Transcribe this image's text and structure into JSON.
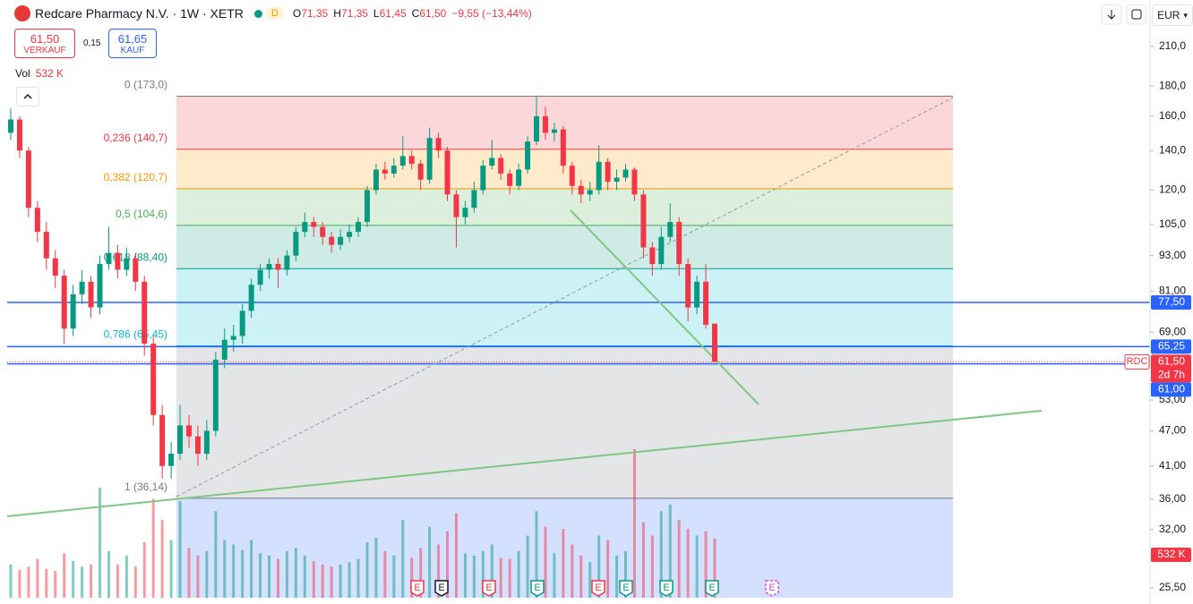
{
  "header": {
    "title": "Redcare Pharmacy N.V. · 1W · XETR",
    "badge": "D",
    "ohlc": [
      {
        "key": "O",
        "label": "71,35"
      },
      {
        "key": "H",
        "label": "71,35"
      },
      {
        "key": "L",
        "label": "61,45"
      },
      {
        "key": "C",
        "label": "61,50"
      }
    ],
    "change": "−9,55 (−13,44%)"
  },
  "trade": {
    "sell_price": "61,50",
    "sell": "VERKAUF",
    "spread": "0,15",
    "buy_price": "61,65",
    "buy": "KAUF"
  },
  "volume_legend": {
    "name": "Vol",
    "value": "532 K"
  },
  "currency": "EUR",
  "chart_data": {
    "type": "candlestick",
    "log_scale": true,
    "ylim": [
      23.95,
      251.6
    ],
    "yticks": [
      {
        "value": 25.5,
        "label": "25,50"
      },
      {
        "value": 32,
        "label": "32,00"
      },
      {
        "value": 36,
        "label": "36,00"
      },
      {
        "value": 41,
        "label": "41,00"
      },
      {
        "value": 47,
        "label": "47,00"
      },
      {
        "value": 53,
        "label": "53,00"
      },
      {
        "value": 69,
        "label": "69,00"
      },
      {
        "value": 81,
        "label": "81,00"
      },
      {
        "value": 93,
        "label": "93,00"
      },
      {
        "value": 105,
        "label": "105,0"
      },
      {
        "value": 120,
        "label": "120,0"
      },
      {
        "value": 140,
        "label": "140,0"
      },
      {
        "value": 160,
        "label": "160,0"
      },
      {
        "value": 180,
        "label": "180,0"
      },
      {
        "value": 210,
        "label": "210,0"
      }
    ],
    "up_color": "#089981",
    "down_color": "#f23645",
    "open": [
      150,
      158,
      140,
      112,
      102,
      92,
      86,
      70,
      80,
      84,
      76,
      90,
      94,
      88,
      92,
      84,
      66,
      50,
      41,
      43,
      48,
      46,
      43,
      47,
      62,
      67,
      68,
      75,
      83,
      88,
      90,
      88,
      93,
      102,
      106,
      104,
      100,
      97,
      100,
      102,
      106,
      120,
      130,
      128,
      132,
      137,
      133,
      125,
      147,
      140,
      118,
      108,
      112,
      120,
      132,
      136,
      128,
      122,
      130,
      145,
      160,
      150,
      152,
      132,
      122,
      118,
      120,
      134,
      124,
      126,
      130,
      118,
      96,
      90,
      100,
      106,
      90,
      76,
      84,
      71.35
    ],
    "high": [
      165,
      160,
      142,
      115,
      106,
      95,
      88,
      83,
      88,
      86,
      93,
      104,
      97,
      96,
      94,
      86,
      68,
      52,
      45,
      52,
      50,
      48,
      49,
      64,
      70,
      71,
      77,
      85,
      90,
      92,
      92,
      95,
      104,
      110,
      108,
      106,
      102,
      103,
      105,
      108,
      122,
      133,
      134,
      136,
      148,
      140,
      135,
      153,
      150,
      142,
      120,
      115,
      124,
      135,
      146,
      138,
      130,
      133,
      148,
      173,
      166,
      156,
      154,
      134,
      125,
      124,
      143,
      136,
      130,
      133,
      131,
      120,
      98,
      104,
      114,
      108,
      92,
      86,
      90,
      71.35
    ],
    "low": [
      146,
      136,
      108,
      98,
      88,
      82,
      66,
      68,
      77,
      73,
      74,
      88,
      85,
      86,
      81,
      63,
      48,
      39,
      39,
      42,
      44,
      41,
      42,
      46,
      60,
      64,
      66,
      73,
      81,
      85,
      82,
      86,
      91,
      100,
      100,
      97,
      94,
      95,
      98,
      100,
      104,
      118,
      125,
      126,
      130,
      130,
      120,
      123,
      136,
      115,
      96,
      105,
      110,
      118,
      130,
      125,
      118,
      120,
      128,
      143,
      146,
      145,
      128,
      118,
      114,
      115,
      118,
      120,
      120,
      124,
      115,
      92,
      86,
      88,
      98,
      86,
      72,
      74,
      70,
      61.45
    ],
    "close": [
      158,
      140,
      112,
      102,
      92,
      86,
      70,
      80,
      84,
      76,
      90,
      94,
      88,
      92,
      84,
      66,
      50,
      41,
      43,
      48,
      46,
      43,
      47,
      62,
      67,
      68,
      75,
      83,
      88,
      90,
      88,
      93,
      102,
      106,
      104,
      100,
      97,
      100,
      102,
      106,
      120,
      130,
      128,
      132,
      137,
      133,
      125,
      147,
      140,
      118,
      108,
      112,
      120,
      132,
      136,
      128,
      122,
      130,
      145,
      160,
      150,
      152,
      132,
      122,
      118,
      120,
      134,
      124,
      126,
      130,
      118,
      96,
      90,
      100,
      106,
      90,
      76,
      84,
      71.05,
      61.5
    ],
    "volume": [
      300,
      250,
      280,
      350,
      260,
      240,
      400,
      330,
      280,
      300,
      990,
      420,
      300,
      380,
      280,
      500,
      890,
      700,
      520,
      870,
      450,
      380,
      420,
      780,
      520,
      480,
      430,
      520,
      400,
      380,
      350,
      420,
      450,
      380,
      330,
      300,
      280,
      300,
      320,
      350,
      500,
      540,
      420,
      380,
      700,
      360,
      450,
      640,
      480,
      600,
      760,
      400,
      380,
      420,
      480,
      360,
      350,
      420,
      560,
      780,
      640,
      400,
      620,
      480,
      380,
      320,
      560,
      520,
      380,
      420,
      1340,
      680,
      560,
      780,
      840,
      700,
      620,
      560,
      600,
      532
    ],
    "volume_label": "532 K",
    "fib_levels": [
      {
        "value": 173,
        "label": "0 (173,0)",
        "color": "#787b86"
      },
      {
        "value": 140.7,
        "label": "0,236 (140,7)",
        "color": "#f23645"
      },
      {
        "value": 120.7,
        "label": "0,382 (120,7)",
        "color": "#ff9800"
      },
      {
        "value": 104.6,
        "label": "0,5 (104,6)",
        "color": "#4caf50"
      },
      {
        "value": 88.4,
        "label": "0,618 (88,40)",
        "color": "#089981"
      },
      {
        "value": 65.45,
        "label": "0,786 (65,45)",
        "color": "#00bcd4"
      },
      {
        "value": 36.14,
        "label": "1 (36,14)",
        "color": "#787b86"
      }
    ],
    "fib_below_color": "#2962ff",
    "price_lines": [
      {
        "value": 77.5,
        "label": "77,50",
        "color": "#2962ff"
      },
      {
        "value": 65.25,
        "label": "65,25",
        "color": "#2962ff"
      },
      {
        "value": 61,
        "label": "61,00",
        "color": "#2962ff"
      }
    ],
    "last_price": {
      "value": 61.5,
      "label": "61,50",
      "countdown": "2d 7h",
      "symbol": "RDC",
      "color": "#f23645"
    },
    "earnings": [
      {
        "label": "E",
        "color": "#f23645"
      },
      {
        "label": "E",
        "color": "#131722"
      },
      {
        "label": "E",
        "color": "#f23645"
      },
      {
        "label": "E",
        "color": "#089981"
      },
      {
        "label": "E",
        "color": "#f23645"
      },
      {
        "label": "E",
        "color": "#089981"
      },
      {
        "label": "E",
        "color": "#089981"
      },
      {
        "label": "E",
        "color": "#089981"
      },
      {
        "label": "E",
        "color": "#e040fb"
      }
    ]
  }
}
